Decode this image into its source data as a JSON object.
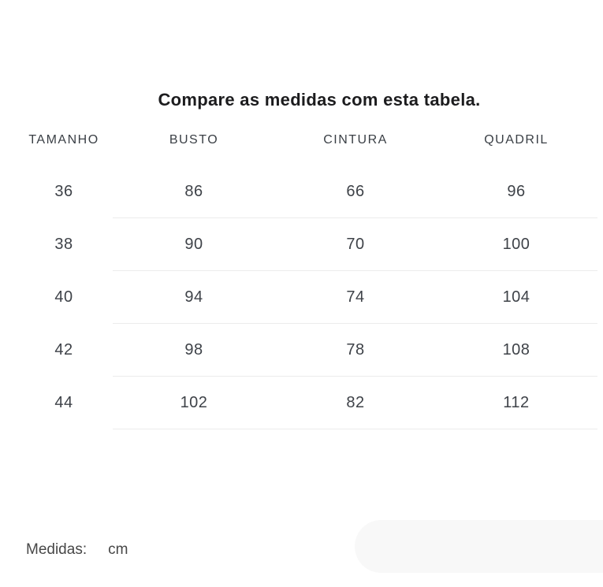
{
  "page": {
    "title": "Compare as medidas com esta tabela."
  },
  "size_table": {
    "columns": [
      "TAMANHO",
      "BUSTO",
      "CINTURA",
      "QUADRIL"
    ],
    "rows": [
      [
        "36",
        "86",
        "66",
        "96"
      ],
      [
        "38",
        "90",
        "70",
        "100"
      ],
      [
        "40",
        "94",
        "74",
        "104"
      ],
      [
        "42",
        "98",
        "78",
        "108"
      ],
      [
        "44",
        "102",
        "82",
        "112"
      ]
    ]
  },
  "footer": {
    "label": "Medidas:",
    "unit": "cm"
  },
  "colors": {
    "background": "#ffffff",
    "title": "#1c1c1e",
    "header": "#3a3f45",
    "cell": "#3e4248",
    "divider": "#ececec",
    "footer": "#474747",
    "pill": "#f8f8f8"
  }
}
